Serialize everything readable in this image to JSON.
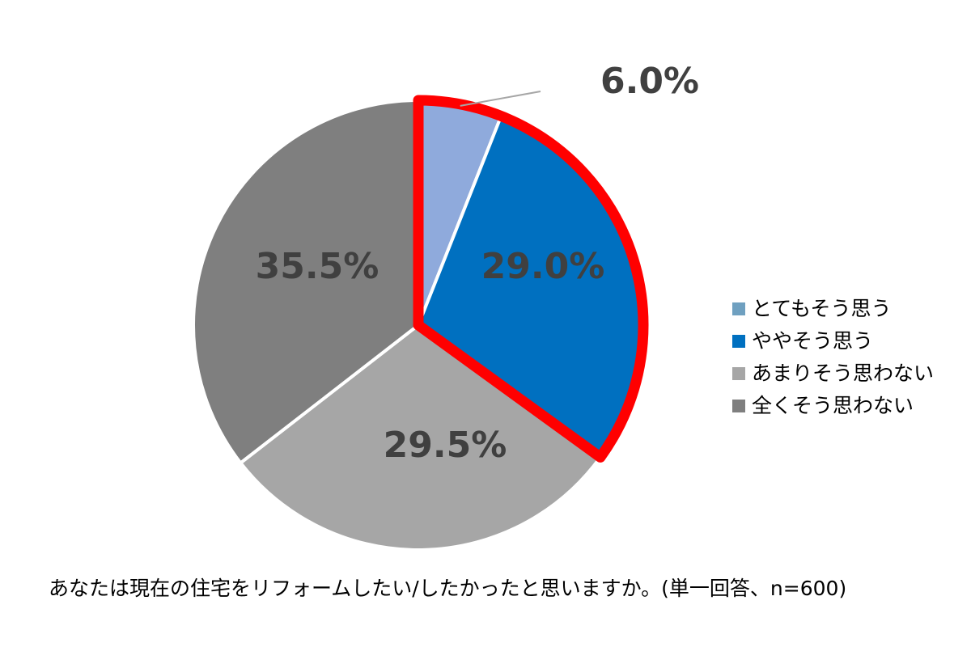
{
  "chart_data": {
    "type": "pie",
    "title": "",
    "categories": [
      "とてもそう思う",
      "ややそう思う",
      "あまりそう思わない",
      "全くそう思わない"
    ],
    "values": [
      6.0,
      29.0,
      29.5,
      35.5
    ],
    "labels": [
      "6.0%",
      "29.0%",
      "29.5%",
      "35.5%"
    ],
    "colors": [
      "#8FAADC",
      "#0070C0",
      "#A6A6A6",
      "#7F7F7F"
    ],
    "highlight": {
      "description": "red outline around ややそう思う and とてもそう思う slices",
      "categories": [
        "とてもそう思う",
        "ややそう思う"
      ],
      "color": "#FF0000"
    },
    "legend_colors": [
      "#6FA0C0",
      "#0070C0",
      "#A6A6A6",
      "#7F7F7F"
    ],
    "legend_position": "right",
    "start_angle_deg": 0,
    "direction": "clockwise"
  },
  "caption": "あなたは現在の住宅をリフォームしたい/したかったと思いますか。(単一回答、n=600)"
}
